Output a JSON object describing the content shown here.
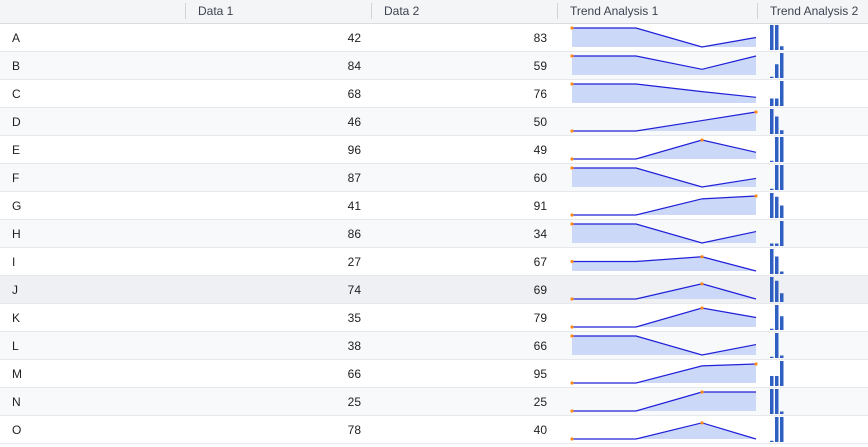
{
  "columns": {
    "name": "",
    "data1": "Data 1",
    "data2": "Data 2",
    "trend1": "Trend Analysis 1",
    "trend2": "Trend Analysis 2"
  },
  "colors": {
    "line": "#2020d8",
    "area": "#ccd8f8",
    "marker": "#ff8c1a",
    "bar": "#2f5fc0"
  },
  "rows": [
    {
      "name": "A",
      "data1": "42",
      "data2": "83",
      "trend1": [
        1.0,
        1.0,
        0.0,
        0.5
      ],
      "trend2": [
        1.0,
        1.0,
        0.15
      ]
    },
    {
      "name": "B",
      "data1": "84",
      "data2": "59",
      "trend1": [
        1.0,
        1.0,
        0.3,
        1.0
      ],
      "trend2": [
        0.05,
        0.55,
        1.0
      ]
    },
    {
      "name": "C",
      "data1": "68",
      "data2": "76",
      "trend1": [
        1.0,
        1.0,
        0.6,
        0.3
      ],
      "trend2": [
        0.3,
        0.3,
        1.0
      ]
    },
    {
      "name": "D",
      "data1": "46",
      "data2": "50",
      "trend1": [
        0.0,
        0.0,
        0.55,
        1.0
      ],
      "trend2": [
        1.0,
        0.7,
        0.15
      ]
    },
    {
      "name": "E",
      "data1": "96",
      "data2": "49",
      "trend1": [
        0.0,
        0.0,
        1.0,
        0.35
      ],
      "trend2": [
        0.05,
        1.0,
        1.0
      ]
    },
    {
      "name": "F",
      "data1": "87",
      "data2": "60",
      "trend1": [
        1.0,
        1.0,
        0.0,
        0.45
      ],
      "trend2": [
        0.05,
        1.0,
        1.0
      ]
    },
    {
      "name": "G",
      "data1": "41",
      "data2": "91",
      "trend1": [
        0.0,
        0.0,
        0.85,
        1.0
      ],
      "trend2": [
        1.0,
        0.85,
        0.5
      ]
    },
    {
      "name": "H",
      "data1": "86",
      "data2": "34",
      "trend1": [
        1.0,
        1.0,
        0.0,
        0.6
      ],
      "trend2": [
        0.1,
        0.1,
        1.0
      ]
    },
    {
      "name": "I",
      "data1": "27",
      "data2": "67",
      "trend1": [
        0.5,
        0.5,
        0.75,
        0.0
      ],
      "trend2": [
        1.0,
        0.7,
        0.1
      ]
    },
    {
      "name": "J",
      "data1": "74",
      "data2": "69",
      "trend1": [
        0.0,
        0.0,
        0.8,
        0.0
      ],
      "trend2": [
        1.0,
        0.85,
        0.35
      ]
    },
    {
      "name": "K",
      "data1": "35",
      "data2": "79",
      "trend1": [
        0.0,
        0.0,
        1.0,
        0.5
      ],
      "trend2": [
        0.05,
        1.0,
        0.55
      ]
    },
    {
      "name": "L",
      "data1": "38",
      "data2": "66",
      "trend1": [
        1.0,
        1.0,
        0.0,
        0.55
      ],
      "trend2": [
        0.05,
        1.0,
        0.1
      ]
    },
    {
      "name": "M",
      "data1": "66",
      "data2": "95",
      "trend1": [
        0.0,
        0.0,
        0.9,
        1.0
      ],
      "trend2": [
        0.4,
        0.4,
        1.0
      ]
    },
    {
      "name": "N",
      "data1": "25",
      "data2": "25",
      "trend1": [
        0.0,
        0.0,
        1.0,
        1.0
      ],
      "trend2": [
        1.0,
        1.0,
        0.1
      ]
    },
    {
      "name": "O",
      "data1": "78",
      "data2": "40",
      "trend1": [
        0.0,
        0.0,
        0.85,
        0.0
      ],
      "trend2": [
        0.05,
        1.0,
        1.0
      ]
    }
  ]
}
